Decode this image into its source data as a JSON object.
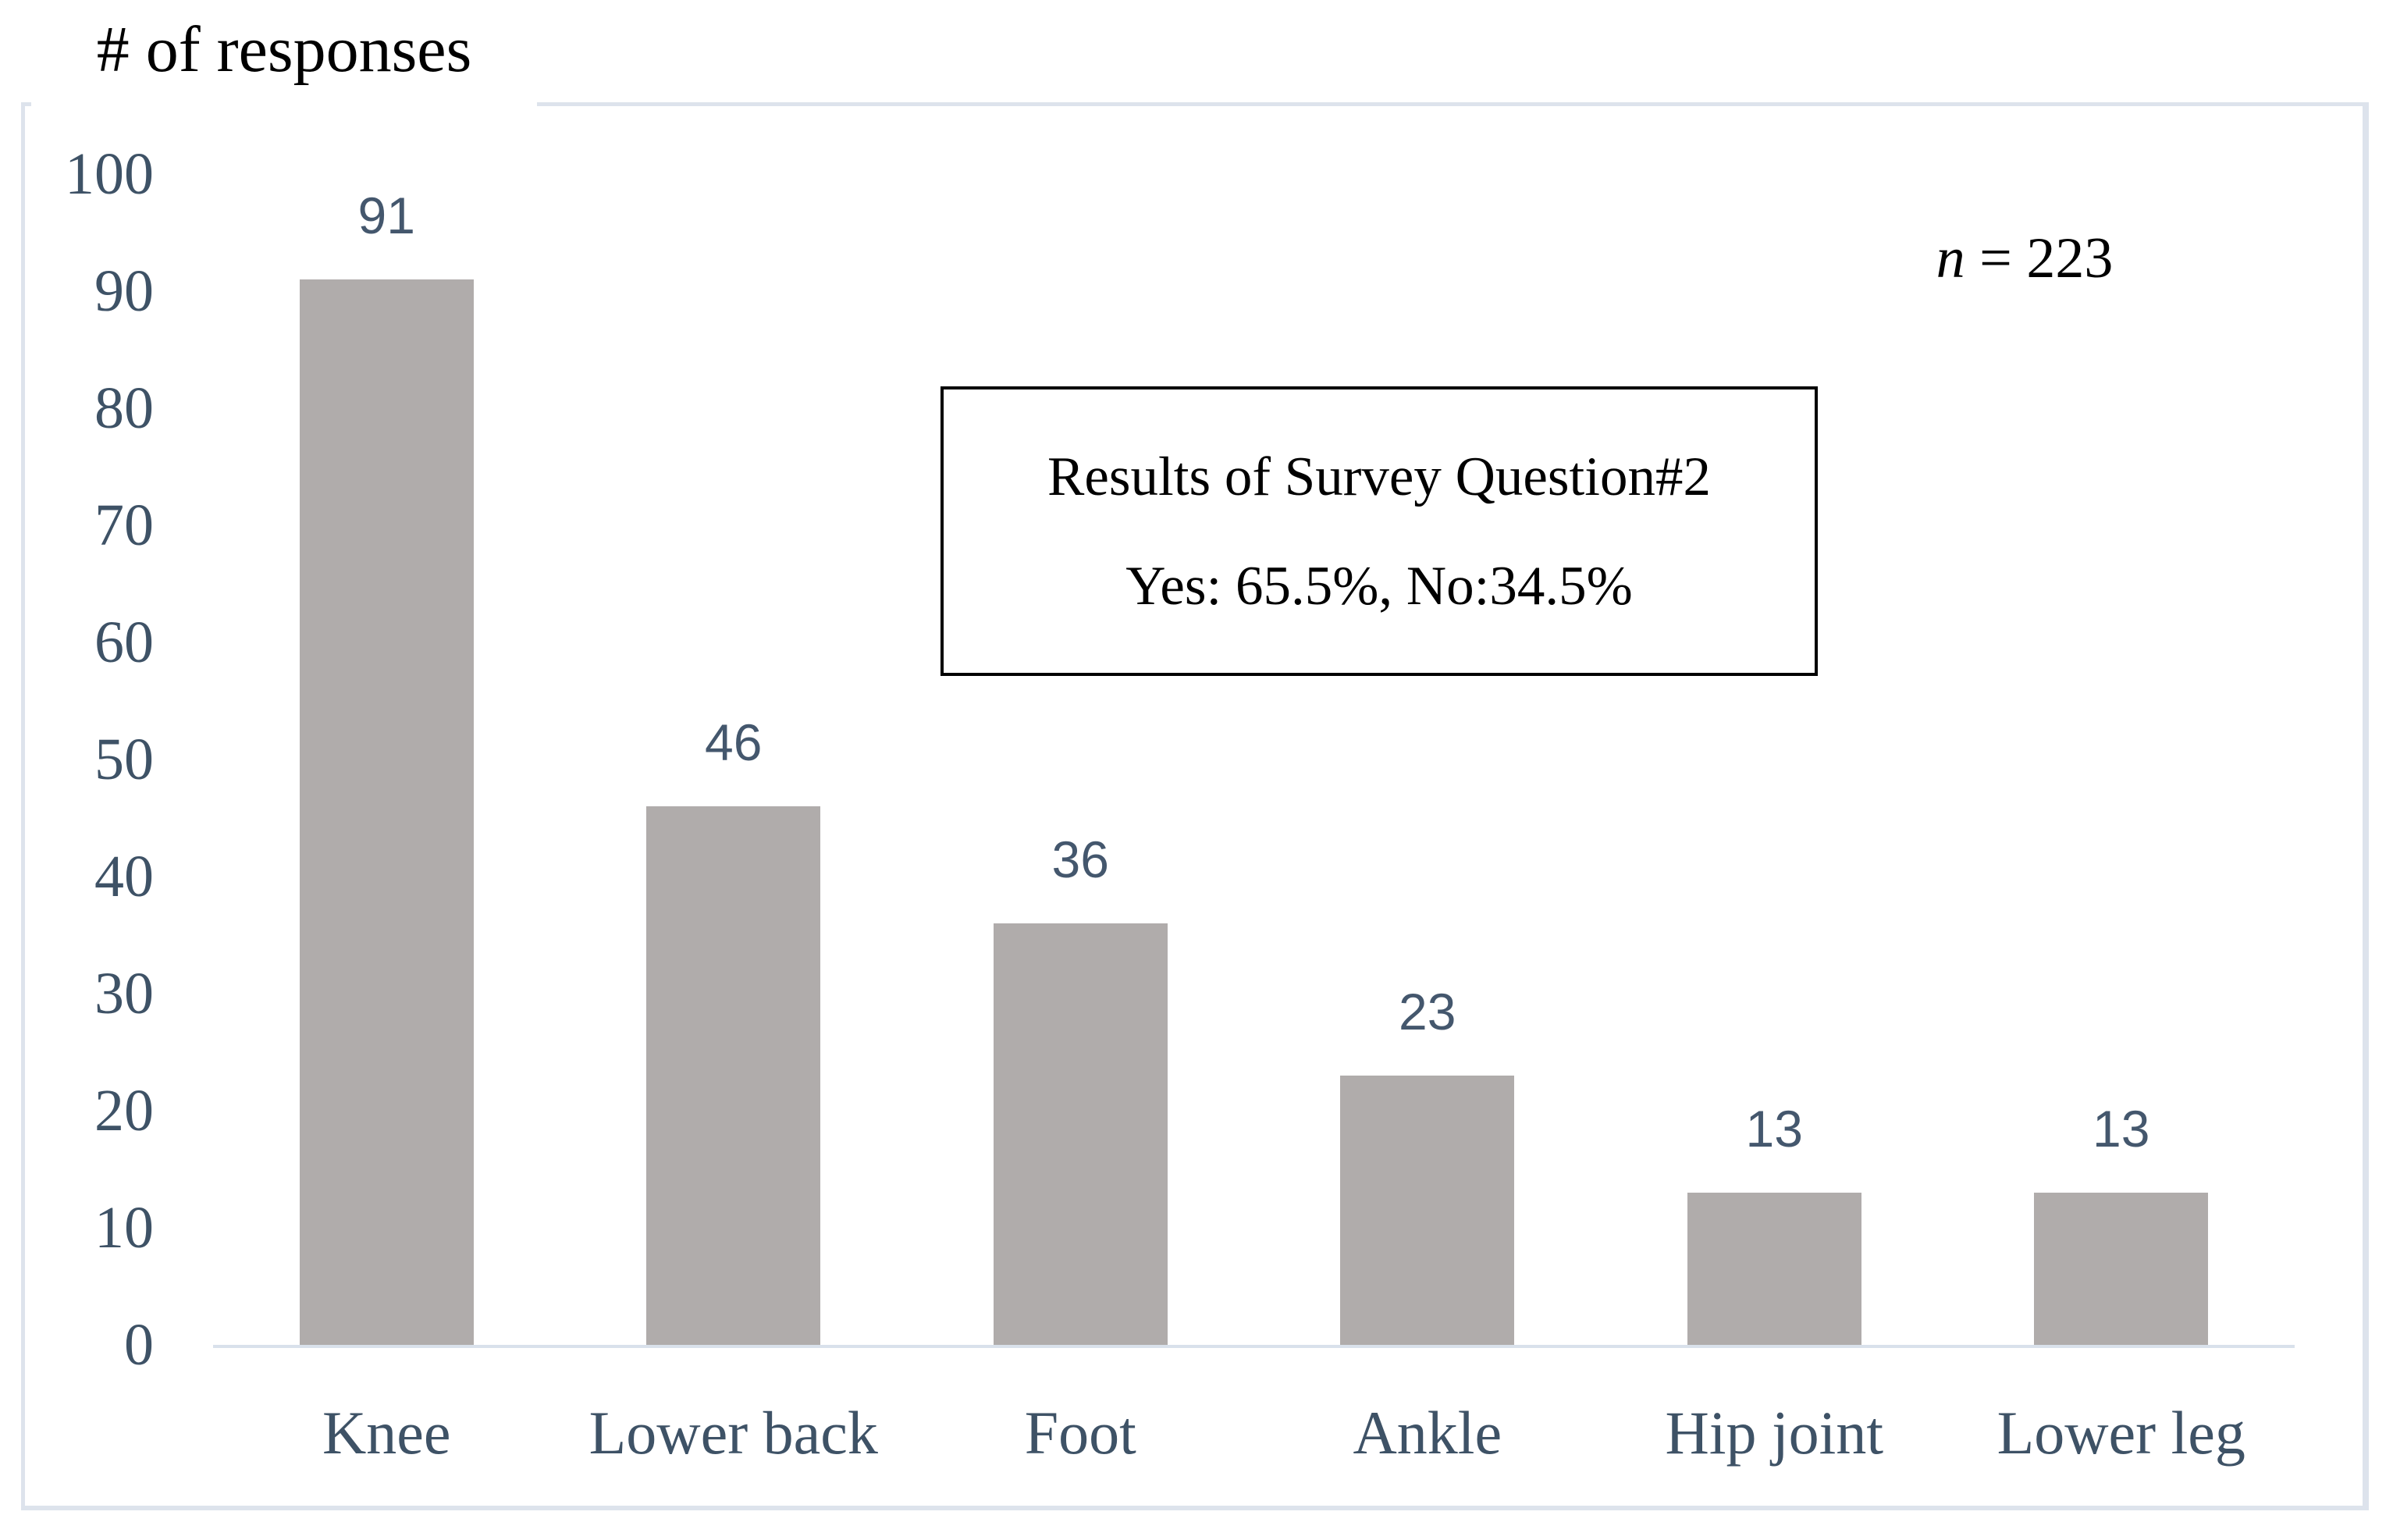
{
  "title": "# of responses",
  "sample_size": {
    "n_symbol": "n",
    "rest": " = 223"
  },
  "annotation_box": {
    "line1": "Results of Survey Question#2",
    "line2": "Yes: 65.5%, No:34.5%"
  },
  "chart_data": {
    "type": "bar",
    "title": "# of responses",
    "categories": [
      "Knee",
      "Lower back",
      "Foot",
      "Ankle",
      "Hip joint",
      "Lower leg"
    ],
    "values": [
      91,
      46,
      36,
      23,
      13,
      13
    ],
    "data_labels": [
      "91",
      "46",
      "36",
      "23",
      "13",
      "13"
    ],
    "xlabel": "",
    "ylabel": "# of responses",
    "ylim": [
      0,
      100
    ],
    "yticks": [
      100,
      90,
      80,
      70,
      60,
      50,
      40,
      30,
      20,
      10,
      0
    ],
    "grid": false,
    "legend": "none",
    "annotations": [
      "n = 223",
      "Results of Survey Question#2",
      "Yes: 65.5%, No:34.5%"
    ]
  },
  "colors": {
    "bar_fill": "#b0acab",
    "data_label_text": "#44576d",
    "axis_text": "#3e5266",
    "title_text": "#000000",
    "axis_line": "#d9e1eb",
    "panel_border": "#dde3ec",
    "annotation_border": "#000000",
    "background": "#ffffff"
  }
}
